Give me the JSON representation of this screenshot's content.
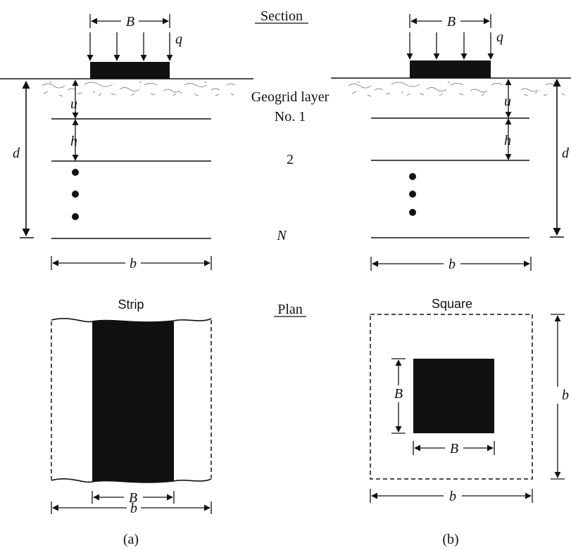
{
  "headings": {
    "section": "Section",
    "plan": "Plan",
    "geogrid": "Geogrid layer",
    "strip": "Strip",
    "square": "Square"
  },
  "layers": {
    "first": "No. 1",
    "second": "2",
    "last": "N"
  },
  "symbols": {
    "B": "B",
    "q": "q",
    "u": "u",
    "h": "h",
    "d": "d",
    "b": "b"
  },
  "captions": {
    "a": "(a)",
    "b": "(b)"
  },
  "colors": {
    "ink": "#111111",
    "footing": "#111111",
    "soil": "#9a9a9a"
  }
}
